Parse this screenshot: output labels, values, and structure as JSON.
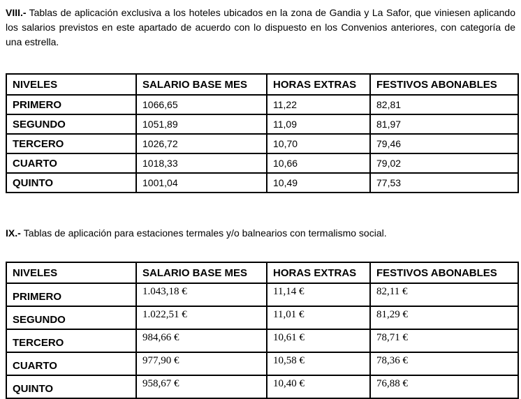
{
  "doc": {
    "sections": [
      {
        "marker": "VIII.-",
        "intro": "Tablas de aplicación exclusiva a los hoteles ubicados en la zona de Gandia y La Safor, que viniesen aplicando los salarios previstos en este apartado de acuerdo con lo dispuesto en los Convenios anteriores, con categoría de una estrella."
      },
      {
        "marker": "IX.-",
        "intro": "Tablas de aplicación para estaciones termales y/o balnearios con termalismo social."
      }
    ],
    "tables": [
      {
        "headers": [
          "NIVELES",
          "SALARIO BASE MES",
          "HORAS EXTRAS",
          "FESTIVOS ABONABLES"
        ],
        "rows": [
          [
            "PRIMERO",
            "1066,65",
            "11,22",
            "82,81"
          ],
          [
            "SEGUNDO",
            "1051,89",
            "11,09",
            "81,97"
          ],
          [
            "TERCERO",
            "1026,72",
            "10,70",
            "79,46"
          ],
          [
            "CUARTO",
            "1018,33",
            "10,66",
            "79,02"
          ],
          [
            "QUINTO",
            "1001,04",
            "10,49",
            "77,53"
          ]
        ]
      },
      {
        "headers": [
          "NIVELES",
          "SALARIO BASE MES",
          "HORAS EXTRAS",
          "FESTIVOS ABONABLES"
        ],
        "rows": [
          [
            "PRIMERO",
            "1.043,18 €",
            "11,14 €",
            "82,11 €"
          ],
          [
            "SEGUNDO",
            "1.022,51 €",
            "11,01 €",
            "81,29 €"
          ],
          [
            "TERCERO",
            "984,66 €",
            "10,61 €",
            "78,71 €"
          ],
          [
            "CUARTO",
            "977,90 €",
            "10,58 €",
            "78,36 €"
          ],
          [
            "QUINTO",
            "958,67 €",
            "10,40 €",
            "76,88 €"
          ]
        ]
      }
    ]
  }
}
